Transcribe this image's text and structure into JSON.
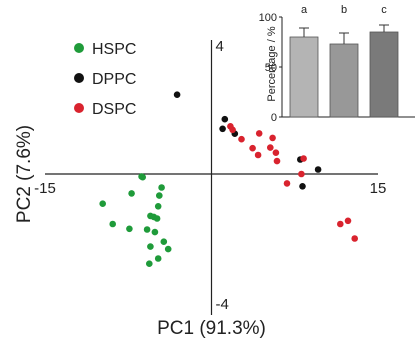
{
  "chart_data": [
    {
      "type": "scatter",
      "xlabel": "PC1 (91.3%)",
      "ylabel": "PC2 (7.6%)",
      "xlim": [
        -15,
        15
      ],
      "ylim": [
        -4,
        4
      ],
      "x_tick_labels": [
        "-15",
        "15"
      ],
      "y_tick_labels": [
        "4",
        "-4"
      ],
      "legend_position": "top-left",
      "series": [
        {
          "name": "HSPC",
          "color": "#1f9b3a",
          "points": [
            [
              -6.3,
              -0.08
            ],
            [
              -6.2,
              -0.1
            ],
            [
              -4.8,
              -1.0
            ],
            [
              -4.7,
              -0.67
            ],
            [
              -7.2,
              -0.6
            ],
            [
              -4.5,
              -0.42
            ],
            [
              -9.8,
              -0.92
            ],
            [
              -5.5,
              -1.3
            ],
            [
              -5.2,
              -1.33
            ],
            [
              -4.9,
              -1.38
            ],
            [
              -8.9,
              -1.55
            ],
            [
              -7.4,
              -1.7
            ],
            [
              -5.8,
              -1.72
            ],
            [
              -5.1,
              -1.8
            ],
            [
              -4.3,
              -2.1
            ],
            [
              -5.5,
              -2.25
            ],
            [
              -3.9,
              -2.33
            ],
            [
              -4.8,
              -2.62
            ],
            [
              -5.6,
              -2.78
            ]
          ]
        },
        {
          "name": "DPPC",
          "color": "#111111",
          "points": [
            [
              -3.1,
              2.46
            ],
            [
              1.2,
              1.7
            ],
            [
              1.0,
              1.4
            ],
            [
              2.1,
              1.25
            ],
            [
              8.0,
              0.45
            ],
            [
              9.6,
              0.14
            ],
            [
              8.2,
              -0.38
            ]
          ]
        },
        {
          "name": "DSPC",
          "color": "#d9232e",
          "points": [
            [
              1.9,
              1.37
            ],
            [
              1.7,
              1.48
            ],
            [
              2.7,
              1.08
            ],
            [
              4.3,
              1.26
            ],
            [
              5.5,
              1.12
            ],
            [
              5.3,
              0.82
            ],
            [
              3.7,
              0.8
            ],
            [
              4.2,
              0.59
            ],
            [
              5.8,
              0.66
            ],
            [
              5.9,
              0.4
            ],
            [
              8.3,
              0.48
            ],
            [
              6.8,
              -0.29
            ],
            [
              8.1,
              0.0
            ],
            [
              11.6,
              -1.55
            ],
            [
              12.9,
              -2.0
            ],
            [
              12.3,
              -1.45
            ]
          ]
        }
      ]
    },
    {
      "type": "bar",
      "ylabel": "Percentage / %",
      "ylim": [
        0,
        100
      ],
      "y_tick_labels": [
        "0",
        "50",
        "100"
      ],
      "categories": [
        "a",
        "b",
        "c"
      ],
      "values": [
        80,
        73,
        85
      ],
      "errors": [
        9,
        11,
        7
      ],
      "colors": [
        "#b4b4b4",
        "#989898",
        "#7a7a7a"
      ]
    }
  ]
}
